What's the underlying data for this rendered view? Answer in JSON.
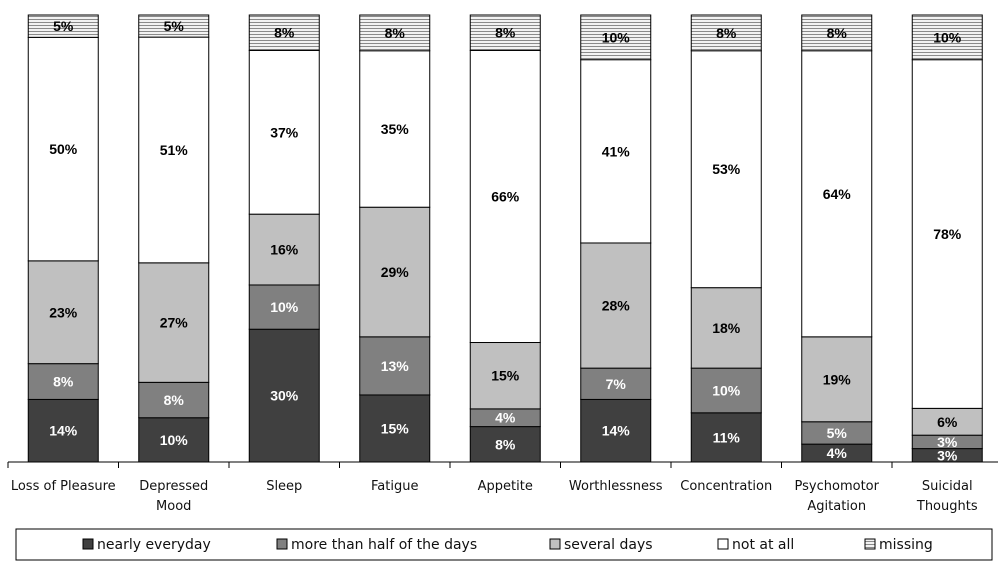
{
  "chart_data": {
    "type": "bar",
    "stacked": true,
    "normalized": true,
    "categories": [
      [
        "Loss of Pleasure"
      ],
      [
        "Depressed",
        "Mood"
      ],
      [
        "Sleep"
      ],
      [
        "Fatigue"
      ],
      [
        "Appetite"
      ],
      [
        "Worthlessness"
      ],
      [
        "Concentration"
      ],
      [
        "Psychomotor",
        "Agitation"
      ],
      [
        "Suicidal",
        "Thoughts"
      ]
    ],
    "series": [
      {
        "name": "nearly everyday",
        "color": "#404040",
        "text_color": "#ffffff",
        "values": [
          14,
          10,
          30,
          15,
          8,
          14,
          11,
          4,
          3
        ]
      },
      {
        "name": "more than half of the days",
        "color": "#808080",
        "text_color": "#ffffff",
        "values": [
          8,
          8,
          10,
          13,
          4,
          7,
          10,
          5,
          3
        ]
      },
      {
        "name": "several days",
        "color": "#c0c0c0",
        "text_color": "#000000",
        "values": [
          23,
          27,
          16,
          29,
          15,
          28,
          18,
          19,
          6
        ]
      },
      {
        "name": "not at all",
        "color": "#ffffff",
        "text_color": "#000000",
        "values": [
          50,
          51,
          37,
          35,
          66,
          41,
          53,
          64,
          78
        ]
      },
      {
        "name": "missing",
        "color": "#e0e0e0",
        "pattern": "horizontal-lines",
        "text_color": "#000000",
        "values": [
          5,
          5,
          8,
          8,
          8,
          10,
          8,
          8,
          10
        ]
      }
    ],
    "value_suffix": "%",
    "legend_position": "bottom",
    "grid": false
  }
}
